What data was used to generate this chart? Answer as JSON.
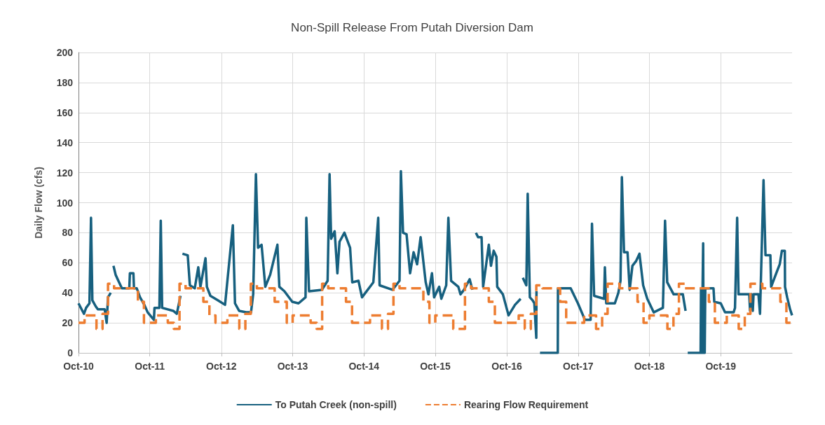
{
  "chart_data": {
    "type": "line",
    "title": "Non-Spill Release From Putah Diversion Dam",
    "ylabel": "Daily Flow (cfs)",
    "xlim": [
      "2010-10-01",
      "2020-09-30"
    ],
    "xticks": [
      {
        "value": "2010-10-01",
        "label": "Oct-10"
      },
      {
        "value": "2011-10-01",
        "label": "Oct-11"
      },
      {
        "value": "2012-10-01",
        "label": "Oct-12"
      },
      {
        "value": "2013-10-01",
        "label": "Oct-13"
      },
      {
        "value": "2014-10-01",
        "label": "Oct-14"
      },
      {
        "value": "2015-10-01",
        "label": "Oct-15"
      },
      {
        "value": "2016-10-01",
        "label": "Oct-16"
      },
      {
        "value": "2017-10-01",
        "label": "Oct-17"
      },
      {
        "value": "2018-10-01",
        "label": "Oct-18"
      },
      {
        "value": "2019-10-01",
        "label": "Oct-19"
      }
    ],
    "ylim": [
      0,
      200
    ],
    "yticks": [
      0,
      20,
      40,
      60,
      80,
      100,
      120,
      140,
      160,
      180,
      200
    ],
    "grid": true,
    "legend": "bottom",
    "marker": "none",
    "series": [
      {
        "name": "To Putah Creek (non-spill)",
        "line_style": "solid",
        "color": "#17607f",
        "x": [
          "2010-10-01",
          "2010-10-29",
          "2010-11-09",
          "2010-11-26",
          "2010-12-04",
          "2010-12-11",
          "2010-12-28",
          "2011-01-08",
          "2011-02-12",
          "2011-02-22",
          "2011-03-01",
          "2011-03-15",
          "2011-03-20",
          "2011-03-29",
          "2011-04-09",
          "2011-04-23",
          "2011-05-11",
          "2011-06-18",
          "2011-06-21",
          "2011-07-09",
          "2011-07-12",
          "2011-07-26",
          "2011-08-12",
          "2011-09-03",
          "2011-09-20",
          "2011-10-22",
          "2011-10-25",
          "2011-11-19",
          "2011-11-26",
          "2011-12-03",
          "2012-01-29",
          "2012-02-16",
          "2012-03-06",
          "2012-03-10",
          "2012-03-16",
          "2012-04-12",
          "2012-04-23",
          "2012-05-18",
          "2012-06-05",
          "2012-06-16",
          "2012-07-12",
          "2012-07-19",
          "2012-08-06",
          "2012-09-14",
          "2012-10-20",
          "2012-11-29",
          "2012-12-10",
          "2012-12-31",
          "2013-02-05",
          "2013-03-02",
          "2013-03-13",
          "2013-03-27",
          "2013-04-07",
          "2013-04-25",
          "2013-05-14",
          "2013-06-08",
          "2013-07-15",
          "2013-07-25",
          "2013-08-20",
          "2013-09-29",
          "2013-10-31",
          "2013-12-06",
          "2013-12-10",
          "2013-12-24",
          "2014-02-28",
          "2014-03-29",
          "2014-04-08",
          "2014-04-16",
          "2014-05-04",
          "2014-05-18",
          "2014-05-29",
          "2014-06-23",
          "2014-07-22",
          "2014-08-02",
          "2014-09-03",
          "2014-09-21",
          "2014-11-18",
          "2014-12-13",
          "2014-12-20",
          "2015-02-24",
          "2015-04-01",
          "2015-04-08",
          "2015-04-19",
          "2015-05-07",
          "2015-05-25",
          "2015-06-12",
          "2015-06-30",
          "2015-07-18",
          "2015-08-13",
          "2015-08-27",
          "2015-09-14",
          "2015-09-25",
          "2015-10-21",
          "2015-11-01",
          "2015-11-26",
          "2015-12-07",
          "2015-12-21",
          "2016-01-27",
          "2016-02-07",
          "2016-02-25",
          "2016-03-25",
          "2016-04-08",
          "2016-04-15",
          "2016-04-26",
          "2016-05-07",
          "2016-05-25",
          "2016-06-02",
          "2016-07-01",
          "2016-07-12",
          "2016-07-26",
          "2016-08-09",
          "2016-08-13",
          "2016-09-11",
          "2016-10-10",
          "2016-11-12",
          "2016-12-11",
          "2016-12-20",
          "2016-12-22",
          "2017-01-09",
          "2017-01-16",
          "2017-01-27",
          "2017-02-10",
          "2017-02-19",
          "2017-03-01",
          "2017-03-02",
          "2017-03-08",
          "2017-03-20",
          "2017-06-19",
          "2017-06-20",
          "2017-08-24",
          "2017-09-30",
          "2017-11-05",
          "2017-12-04",
          "2017-12-11",
          "2017-12-22",
          "2018-02-11",
          "2018-02-15",
          "2018-02-22",
          "2018-04-07",
          "2018-04-25",
          "2018-05-06",
          "2018-05-13",
          "2018-05-24",
          "2018-06-11",
          "2018-06-22",
          "2018-07-06",
          "2018-07-24",
          "2018-08-11",
          "2018-08-30",
          "2018-09-20",
          "2018-10-23",
          "2018-12-09",
          "2018-12-20",
          "2018-12-31",
          "2019-02-02",
          "2019-03-21",
          "2019-04-04",
          "2019-04-10",
          "2019-04-15",
          "2019-06-20",
          "2019-06-22",
          "2019-06-26",
          "2019-06-30",
          "2019-07-03",
          "2019-07-05",
          "2019-07-08",
          "2019-07-11",
          "2019-07-14",
          "2019-08-25",
          "2019-08-29",
          "2019-10-01",
          "2019-10-23",
          "2019-12-06",
          "2019-12-13",
          "2019-12-24",
          "2019-12-31",
          "2020-02-24",
          "2020-02-28",
          "2020-03-06",
          "2020-03-13",
          "2020-03-17",
          "2020-04-11",
          "2020-04-19",
          "2020-05-07",
          "2020-05-17",
          "2020-06-11",
          "2020-06-15",
          "2020-07-11",
          "2020-07-29",
          "2020-08-09",
          "2020-08-24",
          "2020-08-25",
          "2020-09-05",
          "2020-09-20",
          "2020-09-30"
        ],
        "values": [
          33,
          26,
          30,
          33,
          90,
          35,
          31,
          29,
          29,
          20,
          37,
          40,
          null,
          58,
          52,
          48,
          43,
          43,
          53,
          53,
          43,
          43,
          37,
          32,
          27,
          22,
          30,
          30,
          88,
          30,
          28,
          26,
          38,
          null,
          66,
          65,
          45,
          43,
          57,
          44,
          63,
          44,
          38,
          35,
          32,
          85,
          33,
          28,
          27,
          27,
          39,
          119,
          70,
          72,
          44,
          52,
          72,
          44,
          41,
          34,
          33,
          37,
          90,
          41,
          42,
          48,
          119,
          76,
          81,
          53,
          74,
          80,
          70,
          47,
          48,
          37,
          47,
          90,
          45,
          42,
          48,
          121,
          80,
          79,
          53,
          67,
          59,
          77,
          47,
          39,
          53,
          37,
          44,
          36,
          45,
          90,
          48,
          44,
          39,
          42,
          49,
          42,
          null,
          80,
          77,
          77,
          44,
          72,
          58,
          68,
          64,
          44,
          39,
          25,
          32,
          36,
          null,
          50,
          45,
          106,
          37,
          35,
          33,
          10,
          41,
          null,
          0,
          0,
          43,
          43,
          33,
          22,
          22,
          86,
          38,
          36,
          57,
          33,
          33,
          40,
          48,
          117,
          67,
          67,
          42,
          58,
          61,
          66,
          45,
          36,
          27,
          30,
          88,
          47,
          39,
          39,
          28,
          null,
          0,
          0,
          43,
          0,
          43,
          73,
          0,
          43,
          0,
          43,
          43,
          34,
          33,
          27,
          27,
          30,
          90,
          39,
          39,
          28,
          39,
          28,
          39,
          39,
          26,
          115,
          65,
          65,
          44,
          53,
          59,
          68,
          68,
          44,
          37,
          29,
          25
        ]
      },
      {
        "name": "Rearing Flow Requirement",
        "type": "step",
        "line_style": "dashed",
        "color": "#ed7d31",
        "x": [
          "2010-10-01",
          "2010-11-01",
          "2010-12-01",
          "2011-01-01",
          "2011-02-01",
          "2011-03-01",
          "2011-04-01",
          "2011-05-01",
          "2011-06-01",
          "2011-07-01",
          "2011-08-01",
          "2011-09-01",
          "2011-10-01",
          "2011-11-01",
          "2011-12-01",
          "2012-01-01",
          "2012-02-01",
          "2012-03-01",
          "2012-04-01",
          "2012-05-01",
          "2012-06-01",
          "2012-07-01",
          "2012-08-01",
          "2012-09-01",
          "2012-10-01",
          "2012-11-01",
          "2012-12-01",
          "2013-01-01",
          "2013-02-01",
          "2013-03-01",
          "2013-04-01",
          "2013-05-01",
          "2013-06-01",
          "2013-07-01",
          "2013-08-01",
          "2013-09-01",
          "2013-10-01",
          "2013-11-01",
          "2013-12-01",
          "2014-01-01",
          "2014-02-01",
          "2014-03-01",
          "2014-04-01",
          "2014-05-01",
          "2014-06-01",
          "2014-07-01",
          "2014-08-01",
          "2014-09-01",
          "2014-10-01",
          "2014-11-01",
          "2014-12-01",
          "2015-01-01",
          "2015-02-01",
          "2015-03-01",
          "2015-04-01",
          "2015-05-01",
          "2015-06-01",
          "2015-07-01",
          "2015-08-01",
          "2015-09-01",
          "2015-10-01",
          "2015-11-01",
          "2015-12-01",
          "2016-01-01",
          "2016-02-01",
          "2016-03-01",
          "2016-04-01",
          "2016-05-01",
          "2016-06-01",
          "2016-07-01",
          "2016-08-01",
          "2016-09-01",
          "2016-10-01",
          "2016-11-01",
          "2016-12-01",
          "2017-01-01",
          "2017-02-01",
          "2017-03-01",
          "2017-04-01",
          "2017-05-01",
          "2017-06-01",
          "2017-07-01",
          "2017-08-01",
          "2017-09-01",
          "2017-10-01",
          "2017-11-01",
          "2017-12-01",
          "2018-01-01",
          "2018-02-01",
          "2018-03-01",
          "2018-04-01",
          "2018-05-01",
          "2018-06-01",
          "2018-07-01",
          "2018-08-01",
          "2018-09-01",
          "2018-10-01",
          "2018-11-01",
          "2018-12-01",
          "2019-01-01",
          "2019-02-01",
          "2019-03-01",
          "2019-04-01",
          "2019-05-01",
          "2019-06-01",
          "2019-07-01",
          "2019-08-01",
          "2019-09-01",
          "2019-10-01",
          "2019-11-01",
          "2019-12-01",
          "2020-01-01",
          "2020-02-01",
          "2020-03-01",
          "2020-04-01",
          "2020-05-01",
          "2020-06-01",
          "2020-07-01",
          "2020-08-01",
          "2020-09-01",
          "2020-09-30"
        ],
        "values": [
          20,
          25,
          25,
          16,
          26,
          46,
          43,
          43,
          43,
          43,
          34,
          20,
          20,
          25,
          25,
          20,
          16,
          46,
          43,
          43,
          43,
          34,
          25,
          20,
          20,
          25,
          25,
          16,
          26,
          46,
          43,
          43,
          43,
          34,
          34,
          20,
          25,
          25,
          25,
          20,
          16,
          46,
          43,
          43,
          43,
          34,
          20,
          20,
          20,
          25,
          25,
          16,
          26,
          46,
          43,
          43,
          43,
          43,
          34,
          20,
          25,
          25,
          25,
          16,
          16,
          46,
          43,
          43,
          43,
          34,
          20,
          20,
          20,
          20,
          25,
          16,
          26,
          45,
          43,
          43,
          43,
          34,
          20,
          20,
          20,
          25,
          25,
          16,
          26,
          46,
          46,
          43,
          43,
          43,
          34,
          20,
          25,
          25,
          25,
          16,
          26,
          46,
          43,
          43,
          43,
          43,
          34,
          20,
          20,
          25,
          25,
          16,
          26,
          46,
          46,
          43,
          43,
          43,
          34,
          20,
          20
        ]
      }
    ]
  }
}
